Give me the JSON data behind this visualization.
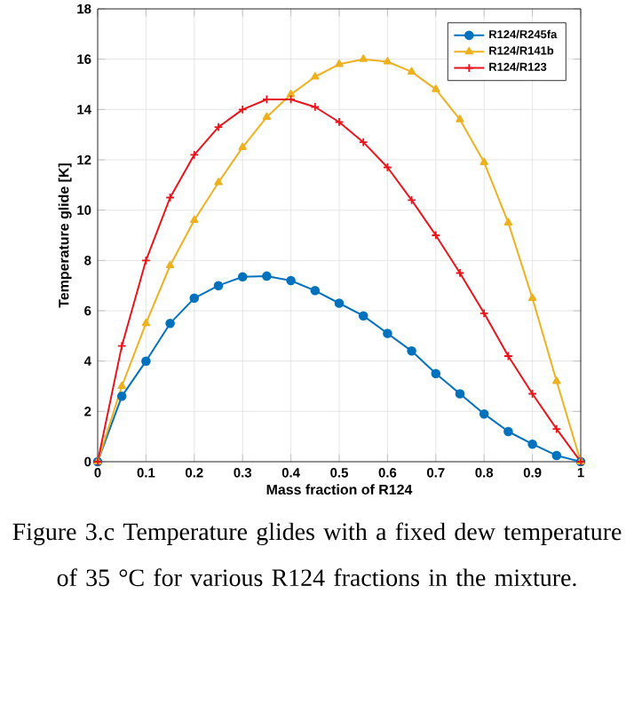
{
  "chart_data": {
    "type": "line",
    "xlabel": "Mass fraction of R124",
    "ylabel": "Temperature glide [K]",
    "x": [
      0,
      0.05,
      0.1,
      0.15,
      0.2,
      0.25,
      0.3,
      0.35,
      0.4,
      0.45,
      0.5,
      0.55,
      0.6,
      0.65,
      0.7,
      0.75,
      0.8,
      0.85,
      0.9,
      0.95,
      1
    ],
    "series": [
      {
        "name": "R124/R245fa",
        "color": "#0072bd",
        "marker": "circle",
        "values": [
          0,
          2.6,
          4.0,
          5.5,
          6.5,
          7.0,
          7.35,
          7.38,
          7.2,
          6.8,
          6.3,
          5.8,
          5.1,
          4.4,
          3.5,
          2.7,
          1.9,
          1.2,
          0.7,
          0.25,
          0
        ]
      },
      {
        "name": "R124/R141b",
        "color": "#edb120",
        "marker": "triangle",
        "values": [
          0,
          3.0,
          5.5,
          7.8,
          9.6,
          11.1,
          12.5,
          13.7,
          14.6,
          15.3,
          15.8,
          16.0,
          15.9,
          15.5,
          14.8,
          13.6,
          11.9,
          9.5,
          6.5,
          3.2,
          0
        ]
      },
      {
        "name": "R124/R123",
        "color": "#e8141c",
        "marker": "cross",
        "values": [
          0,
          4.6,
          8.0,
          10.5,
          12.2,
          13.3,
          14.0,
          14.4,
          14.4,
          14.1,
          13.5,
          12.7,
          11.7,
          10.4,
          9.0,
          7.5,
          5.9,
          4.2,
          2.7,
          1.3,
          0
        ]
      }
    ],
    "xlim": [
      0,
      1
    ],
    "ylim": [
      0,
      18
    ],
    "xticks": [
      0,
      0.1,
      0.2,
      0.3,
      0.4,
      0.5,
      0.6,
      0.7,
      0.8,
      0.9,
      1
    ],
    "yticks": [
      0,
      2,
      4,
      6,
      8,
      10,
      12,
      14,
      16,
      18
    ],
    "grid": true,
    "legend": "top right",
    "line_style": "solid",
    "annotations": [
      "Figure 3.c Temperature glides with a fixed dew temperature of 35 °C for various R124 fractions in the mixture."
    ]
  }
}
